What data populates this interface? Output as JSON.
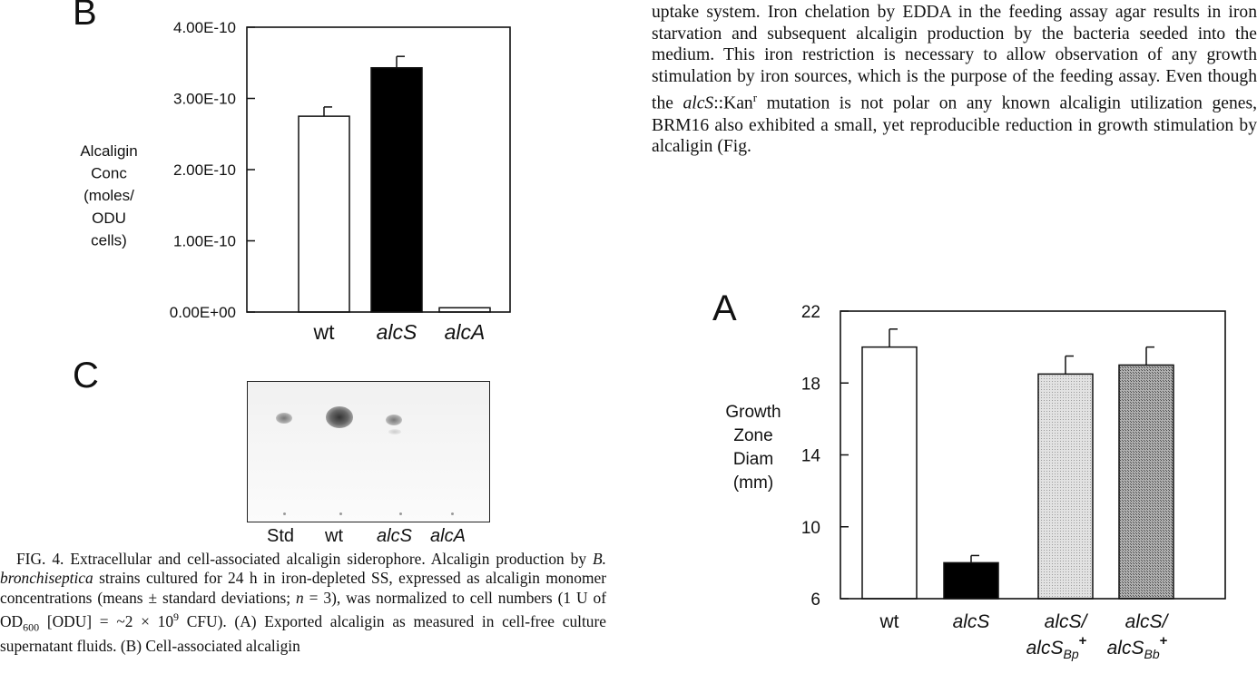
{
  "panel_letters": {
    "b": "B",
    "c": "C",
    "a": "A"
  },
  "chart_data": [
    {
      "panel": "B",
      "type": "bar",
      "categories": [
        "wt",
        "alcS",
        "alcA"
      ],
      "values": [
        2.75e-10,
        3.43e-10,
        6e-12
      ],
      "errors": [
        1.3e-11,
        1.6e-11,
        0
      ],
      "bar_fills": [
        "#ffffff",
        "#000000",
        "#ffffff"
      ],
      "category_italic": [
        false,
        true,
        true
      ],
      "ylabel_lines": [
        "Alcaligin",
        "Conc",
        "(moles/",
        "ODU",
        "cells)"
      ],
      "ylim": [
        0,
        4e-10
      ],
      "ytick_labels": [
        "0.00E+00",
        "1.00E-10",
        "2.00E-10",
        "3.00E-10",
        "4.00E-10"
      ]
    },
    {
      "panel": "A",
      "type": "bar",
      "categories": [
        "wt",
        "alcS",
        "alcS/ alcSBp+",
        "alcS/ alcSBb+"
      ],
      "values": [
        20.0,
        8.0,
        18.5,
        19.0
      ],
      "errors": [
        1.0,
        0.4,
        1.0,
        1.0
      ],
      "bar_fills": [
        "#ffffff",
        "#000000",
        "#d8d8d8",
        "#9a9a9a"
      ],
      "ylabel_lines": [
        "Growth",
        "Zone",
        "Diam",
        "(mm)"
      ],
      "ylim": [
        6,
        22
      ],
      "ytick_labels": [
        "6",
        "10",
        "14",
        "18",
        "22"
      ],
      "category_lines": [
        {
          "l1": "wt",
          "l2": ""
        },
        {
          "l1": "alcS",
          "l2": ""
        },
        {
          "l1": "alcS/",
          "l2": "alcS",
          "sub": "Bp",
          "sup": "+"
        },
        {
          "l1": "alcS/",
          "l2": "alcS",
          "sub": "Bb",
          "sup": "+"
        }
      ]
    }
  ],
  "tlc": {
    "lanes": [
      "Std",
      "wt",
      "alcS",
      "alcA"
    ],
    "spot_intensity": [
      0.55,
      1.0,
      0.5,
      0
    ]
  },
  "caption": {
    "s1": "FIG. 4. Extracellular and cell-associated alcaligin siderophore. Alcaligin production by ",
    "species": "B. bronchiseptica",
    "s2": " strains cultured for 24 h in iron-depleted SS, expressed as alcaligin monomer concentrations (means ± standard deviations; ",
    "n_var": "n",
    "s3": " = 3), was normalized to cell numbers (1 U of OD",
    "od_sub": "600",
    "s4": " [ODU] = ~2 × 10",
    "exp_sup": "9",
    "s5": " CFU). (A) Exported alcaligin as measured in cell-free culture supernatant fluids. (B) Cell-associated alcaligin"
  },
  "body_text": {
    "t1": "uptake system. Iron chelation by EDDA in the feeding assay agar results in iron starvation and subsequent alcaligin production by the bacteria seeded into the medium. This iron restriction is necessary to allow observation of any growth stimulation by iron sources, which is the purpose of the feeding assay. Even though the ",
    "gene": "alcS",
    "t2": "::Kan",
    "sup_r": "r",
    "t3": " mutation is not polar on any known alcaligin utilization genes, BRM16 also exhibited a small, yet reproducible reduction in growth stimulation by alcaligin (Fig."
  }
}
